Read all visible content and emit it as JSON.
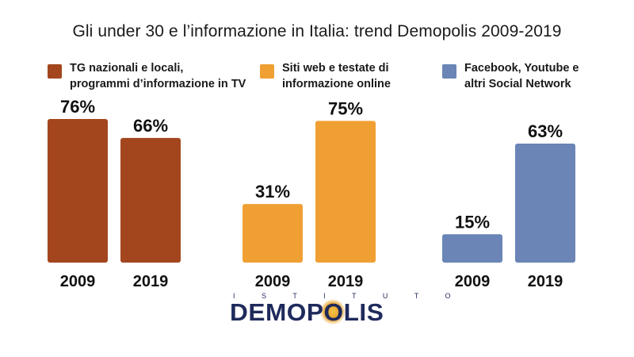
{
  "title": "Gli under 30 e l’informazione in Italia: trend Demopolis 2009-2019",
  "legend": [
    {
      "text": "TG nazionali e locali,\nprogrammi d’informazione in TV",
      "color": "#a3461e"
    },
    {
      "text": "Siti web e testate di\ninformazione online",
      "color": "#f0a033"
    },
    {
      "text": "Facebook, Youtube e\naltri Social Network",
      "color": "#6a85b6"
    }
  ],
  "chart_data": {
    "type": "bar",
    "categories": [
      "2009",
      "2019"
    ],
    "ylim": [
      0,
      100
    ],
    "series": [
      {
        "name": "TG nazionali e locali, programmi d’informazione in TV",
        "values": [
          76,
          66
        ],
        "labels": [
          "76%",
          "66%"
        ],
        "color": "#a3461e"
      },
      {
        "name": "Siti web e testate di informazione online",
        "values": [
          31,
          75
        ],
        "labels": [
          "31%",
          "75%"
        ],
        "color": "#f0a033"
      },
      {
        "name": "Facebook, Youtube e altri Social Network",
        "values": [
          15,
          63
        ],
        "labels": [
          "15%",
          "63%"
        ],
        "color": "#6a85b6"
      }
    ]
  },
  "logo": {
    "top": "I S T I T U T O",
    "main": "DEMOPOLIS"
  }
}
